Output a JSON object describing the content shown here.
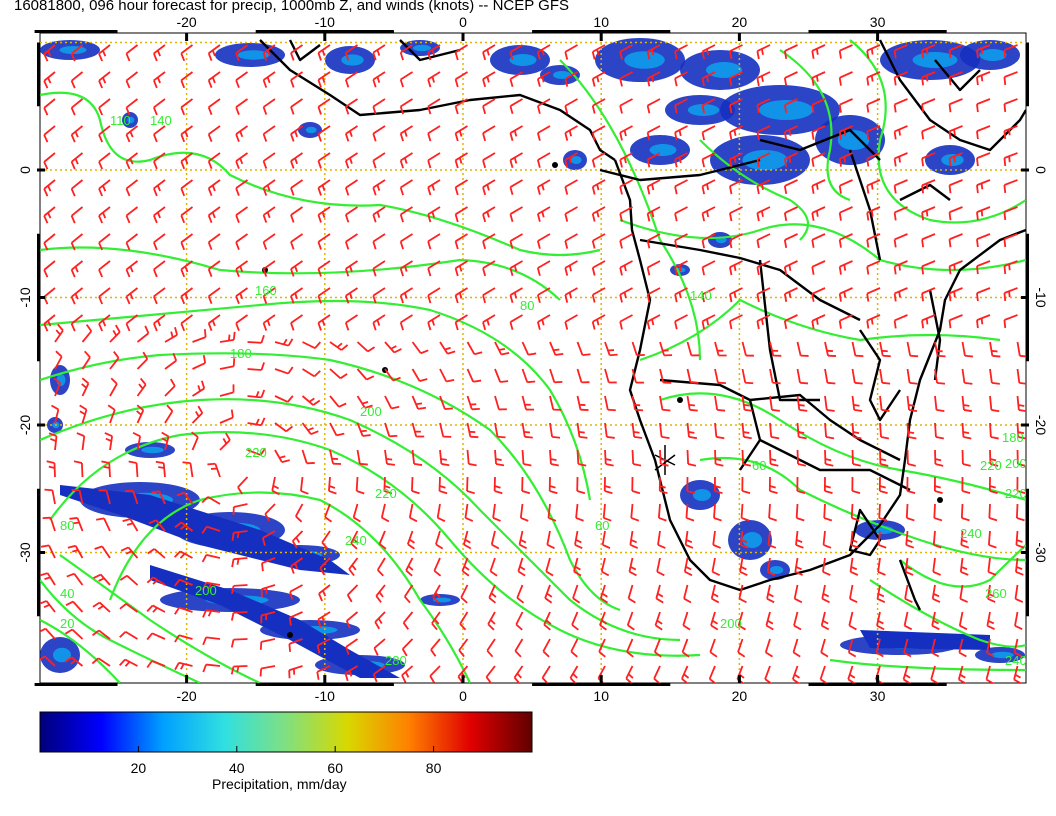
{
  "title": "16081800, 096 hour forecast for precip, 1000mb Z, and winds (knots) -- NCEP GFS",
  "axes": {
    "lon_ticks": [
      "-20",
      "-10",
      "0",
      "10",
      "20",
      "30"
    ],
    "lat_ticks": [
      "0",
      "-10",
      "-20",
      "-30"
    ]
  },
  "contour_labels": [
    "110",
    "140",
    "160",
    "180",
    "200",
    "220",
    "220",
    "240",
    "80",
    "80",
    "60",
    "40",
    "20",
    "200",
    "240",
    "260",
    "240",
    "220",
    "200",
    "180",
    "220",
    "200",
    "280",
    "60",
    "140"
  ],
  "colorbar": {
    "label": "Precipitation, mm/day",
    "ticks": [
      "20",
      "40",
      "60",
      "80"
    ],
    "range": [
      0,
      100
    ],
    "colors": [
      "#00007a",
      "#0000ff",
      "#00a0ff",
      "#30e0e0",
      "#80e080",
      "#d8d800",
      "#ff8000",
      "#e00000",
      "#600000"
    ]
  },
  "colors": {
    "contour": "#33ee33",
    "barb": "#ff2020",
    "coast": "#000000",
    "grid": "#e0b400",
    "precip_low": "#1530c0",
    "precip_high": "#00c8ff"
  }
}
